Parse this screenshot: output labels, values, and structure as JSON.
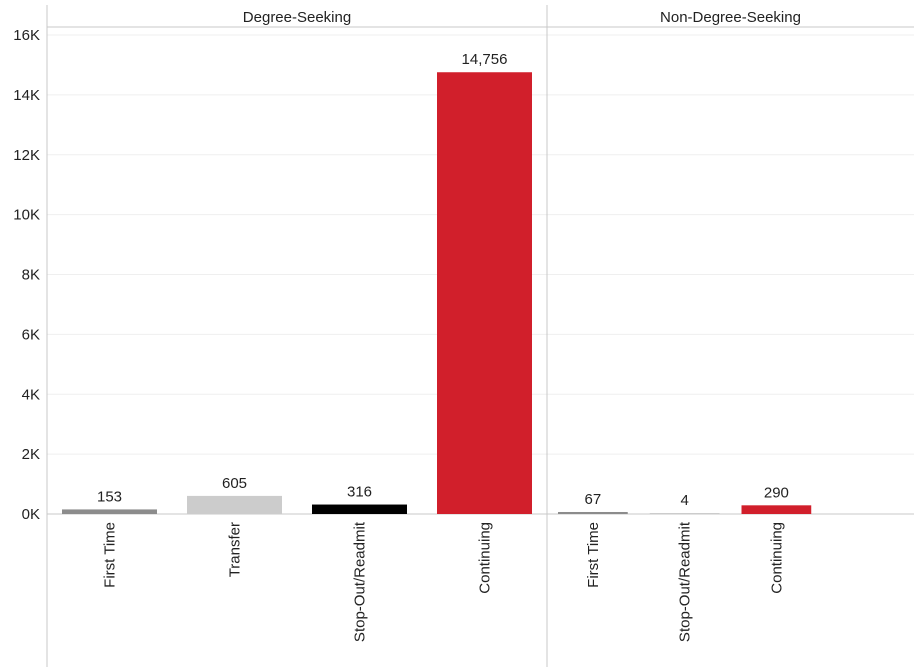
{
  "chart_data": {
    "type": "bar",
    "facet_by": "student type",
    "panels": [
      {
        "title": "Degree-Seeking",
        "categories": [
          "First Time",
          "Transfer",
          "Stop-Out/Readmit",
          "Continuing"
        ],
        "values": [
          153,
          605,
          316,
          14756
        ],
        "value_labels": [
          "153",
          "605",
          "316",
          "14,756"
        ],
        "colors": [
          "#8c8c8c",
          "#cccccc",
          "#000000",
          "#d11f2b"
        ]
      },
      {
        "title": "Non-Degree-Seeking",
        "categories": [
          "First Time",
          "Stop-Out/Readmit",
          "Continuing"
        ],
        "values": [
          67,
          4,
          290
        ],
        "value_labels": [
          "67",
          "4",
          "290"
        ],
        "colors": [
          "#8c8c8c",
          "#cccccc",
          "#d11f2b"
        ]
      }
    ],
    "y_axis": {
      "ylim": [
        0,
        16000
      ],
      "ticks": [
        0,
        2000,
        4000,
        6000,
        8000,
        10000,
        12000,
        14000,
        16000
      ],
      "tick_labels": [
        "0K",
        "2K",
        "4K",
        "6K",
        "8K",
        "10K",
        "12K",
        "14K",
        "16K"
      ]
    },
    "xlabel": "",
    "ylabel": "",
    "grid": true,
    "legend": "none"
  }
}
